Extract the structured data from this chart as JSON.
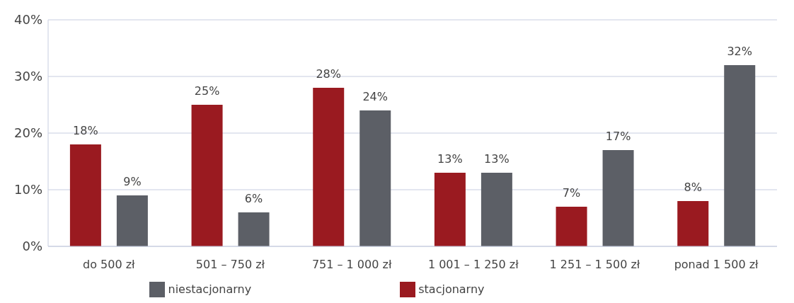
{
  "chart_data": {
    "type": "bar",
    "categories": [
      "do 500 zł",
      "501 – 750 zł",
      "751 – 1 000 zł",
      "1 001 – 1 250 zł",
      "1 251 – 1 500 zł",
      "ponad 1 500 zł"
    ],
    "series": [
      {
        "name": "stacjonarny",
        "color": "#9a1a20",
        "values": [
          18,
          25,
          28,
          13,
          7,
          8
        ],
        "value_labels": [
          "18%",
          "25%",
          "28%",
          "13%",
          "7%",
          "8%"
        ]
      },
      {
        "name": "niestacjonarny",
        "color": "#5c5f66",
        "values": [
          9,
          6,
          24,
          13,
          17,
          32
        ],
        "value_labels": [
          "9%",
          "6%",
          "24%",
          "13%",
          "17%",
          "32%"
        ]
      }
    ],
    "ylim": [
      0,
      40
    ],
    "yticks": [
      {
        "value": 0,
        "label": "0%"
      },
      {
        "value": 10,
        "label": "10%"
      },
      {
        "value": 20,
        "label": "20%"
      },
      {
        "value": 30,
        "label": "30%"
      },
      {
        "value": 40,
        "label": "40%"
      }
    ],
    "grid": "y",
    "legend": "bottom"
  }
}
